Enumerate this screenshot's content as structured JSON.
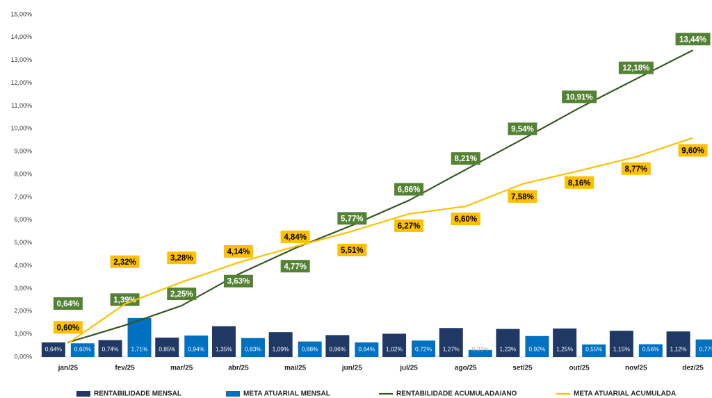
{
  "chart_data": {
    "type": "bar-line",
    "categories": [
      "jan/25",
      "fev/25",
      "mar/25",
      "abr/25",
      "mai/25",
      "jun/25",
      "jul/25",
      "ago/25",
      "set/25",
      "out/25",
      "nov/25",
      "dez/25"
    ],
    "ylim": [
      0,
      15
    ],
    "yticks": [
      {
        "value": 0,
        "label": "0,00%"
      },
      {
        "value": 1,
        "label": "1,00%"
      },
      {
        "value": 2,
        "label": "2,00%"
      },
      {
        "value": 3,
        "label": "3,00%"
      },
      {
        "value": 4,
        "label": "4,00%"
      },
      {
        "value": 5,
        "label": "5,00%"
      },
      {
        "value": 6,
        "label": "6,00%"
      },
      {
        "value": 7,
        "label": "7,00%"
      },
      {
        "value": 8,
        "label": "8,00%"
      },
      {
        "value": 9,
        "label": "9,00%"
      },
      {
        "value": 10,
        "label": "10,00%"
      },
      {
        "value": 11,
        "label": "11,00%"
      },
      {
        "value": 12,
        "label": "12,00%"
      },
      {
        "value": 13,
        "label": "13,00%"
      },
      {
        "value": 14,
        "label": "14,00%"
      },
      {
        "value": 15,
        "label": "15,00%"
      }
    ],
    "grid": false,
    "legend": "bottom",
    "series": [
      {
        "name": "RENTABILIDADE MENSAL",
        "type": "bar",
        "color": "#1f3864",
        "values": [
          0.64,
          0.74,
          0.85,
          1.35,
          1.09,
          0.96,
          1.02,
          1.27,
          1.23,
          1.25,
          1.15,
          1.12
        ],
        "value_labels": [
          "0,64%",
          "0,74%",
          "0,85%",
          "1,35%",
          "1,09%",
          "0,96%",
          "1,02%",
          "1,27%",
          "1,23%",
          "1,25%",
          "1,15%",
          "1,12%"
        ]
      },
      {
        "name": "META ATUARIAL MENSAL",
        "type": "bar",
        "color": "#0070c0",
        "values": [
          0.6,
          1.71,
          0.94,
          0.83,
          0.68,
          0.64,
          0.72,
          0.31,
          0.92,
          0.55,
          0.56,
          0.77
        ],
        "value_labels": [
          "0,60%",
          "1,71%",
          "0,94%",
          "0,83%",
          "0,68%",
          "0,64%",
          "0,72%",
          "0,31%",
          "0,92%",
          "0,55%",
          "0,56%",
          "0,77%"
        ]
      },
      {
        "name": "RENTABILIDADE ACUMULADA/ANO",
        "type": "line",
        "color": "#548235",
        "values": [
          0.64,
          1.39,
          2.25,
          3.63,
          4.77,
          5.77,
          6.86,
          8.21,
          9.54,
          10.91,
          12.18,
          13.44
        ],
        "value_labels": [
          "0,64%",
          "1,39%",
          "2,25%",
          "3,63%",
          "4,77%",
          "5,77%",
          "6,86%",
          "8,21%",
          "9,54%",
          "10,91%",
          "12,18%",
          "13,44%"
        ]
      },
      {
        "name": "META ATUARIAL ACUMULADA",
        "type": "line",
        "color": "#ffc000",
        "values": [
          0.6,
          2.32,
          3.28,
          4.14,
          4.84,
          5.51,
          6.27,
          6.6,
          7.58,
          8.16,
          8.77,
          9.6
        ],
        "value_labels": [
          "0,60%",
          "2,32%",
          "3,28%",
          "4,14%",
          "4,84%",
          "5,51%",
          "6,27%",
          "6,60%",
          "7,58%",
          "8,16%",
          "8,77%",
          "9,60%"
        ]
      }
    ]
  }
}
